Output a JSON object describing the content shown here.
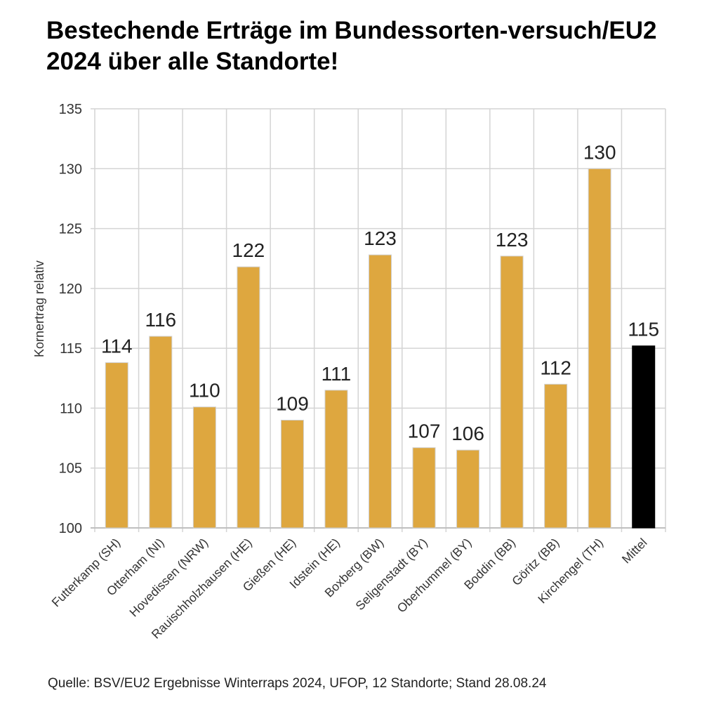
{
  "chart_data": {
    "type": "bar",
    "title": "Bestechende Erträge im Bundessorten-versuch/EU2 2024 über alle Standorte!",
    "xlabel": "",
    "ylabel": "Kornertrag relativ",
    "ylim": [
      100,
      135
    ],
    "yticks": [
      100,
      105,
      110,
      115,
      120,
      125,
      130,
      135
    ],
    "grid": true,
    "categories": [
      "Futterkamp (SH)",
      "Otterham (NI)",
      "Hovedissen (NRW)",
      "Rauischholzhausen (HE)",
      "Gießen (HE)",
      "Idstein (HE)",
      "Boxberg (BW)",
      "Seligenstadt (BY)",
      "Oberhummel (BY)",
      "Boddin (BB)",
      "Göritz (BB)",
      "Kirchengel (TH)",
      "Mittel"
    ],
    "values": [
      113.8,
      116.0,
      110.1,
      121.8,
      109.0,
      111.5,
      122.8,
      106.7,
      106.5,
      122.7,
      112.0,
      130.0,
      115.2
    ],
    "labels": [
      "114",
      "116",
      "110",
      "122",
      "109",
      "111",
      "123",
      "107",
      "106",
      "123",
      "112",
      "130",
      "115"
    ],
    "colors": {
      "bar": "#dea73f",
      "bar_edge": "#cfcfcf",
      "mean_bar": "#000000",
      "grid": "#d4d4d4",
      "axis": "#bfbfbf",
      "tick_text": "#333333",
      "label_text": "#222222"
    }
  },
  "source": "Quelle: BSV/EU2 Ergebnisse Winterraps 2024, UFOP, 12 Standorte; Stand 28.08.24"
}
